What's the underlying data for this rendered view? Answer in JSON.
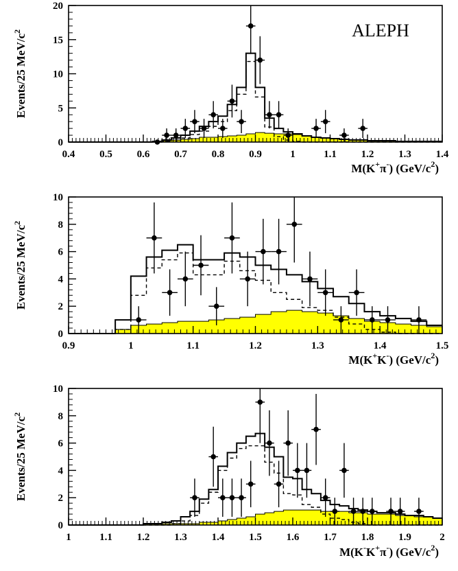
{
  "chart_data": [
    {
      "type": "histogram",
      "label": "ALEPH",
      "xlabel": {
        "main": "M(K",
        "sup1": "+",
        "mid1": "π",
        "sup2": "-",
        "end": ") (GeV/c",
        "sup3": "2",
        "close": ")"
      },
      "ylabel": "Events/25 MeV/c",
      "ylabel_sup": "2",
      "xlim": [
        0.4,
        1.4
      ],
      "ylim": [
        0,
        20
      ],
      "x_ticks": [
        "0.4",
        "0.5",
        "0.6",
        "0.7",
        "0.8",
        "0.9",
        "1",
        "1.1",
        "1.2",
        "1.3",
        "1.4"
      ],
      "y_ticks": [
        "0",
        "5",
        "10",
        "15",
        "20"
      ],
      "bin_width": 0.025,
      "data_points": [
        {
          "x": 0.6375,
          "y": 0,
          "err": 0
        },
        {
          "x": 0.6625,
          "y": 1,
          "err": 1
        },
        {
          "x": 0.6875,
          "y": 1,
          "err": 1
        },
        {
          "x": 0.7125,
          "y": 2,
          "err": 1.4
        },
        {
          "x": 0.7375,
          "y": 3,
          "err": 1.7
        },
        {
          "x": 0.7625,
          "y": 2,
          "err": 1.4
        },
        {
          "x": 0.7875,
          "y": 4,
          "err": 2
        },
        {
          "x": 0.8125,
          "y": 2,
          "err": 1.4
        },
        {
          "x": 0.8375,
          "y": 6,
          "err": 2.4
        },
        {
          "x": 0.8625,
          "y": 3,
          "err": 1.7
        },
        {
          "x": 0.8875,
          "y": 17,
          "err": 4.1
        },
        {
          "x": 0.9125,
          "y": 12,
          "err": 3.5
        },
        {
          "x": 0.9375,
          "y": 4,
          "err": 2
        },
        {
          "x": 0.9625,
          "y": 4,
          "err": 2
        },
        {
          "x": 0.9875,
          "y": 1,
          "err": 1
        },
        {
          "x": 1.0625,
          "y": 2,
          "err": 1.4
        },
        {
          "x": 1.0875,
          "y": 3,
          "err": 1.7
        },
        {
          "x": 1.1375,
          "y": 1,
          "err": 1
        },
        {
          "x": 1.1875,
          "y": 2,
          "err": 1.4
        }
      ],
      "total_hist": [
        0,
        0,
        0,
        0,
        0,
        0,
        0,
        0,
        0,
        0.1,
        0.3,
        0.6,
        1.0,
        1.6,
        2.3,
        3.0,
        3.8,
        5.5,
        8.0,
        13.0,
        8.0,
        3.5,
        2.0,
        1.5,
        1.2,
        0.9,
        0.7,
        0.6,
        0.5,
        0.4,
        0.3,
        0.3,
        0.2,
        0.2,
        0.2,
        0.1,
        0.1,
        0.1,
        0.1,
        0.1
      ],
      "signal_hist": [
        0,
        0,
        0,
        0,
        0,
        0,
        0,
        0,
        0,
        0,
        0.1,
        0.3,
        0.6,
        1.1,
        1.6,
        2.3,
        3.0,
        4.6,
        7.0,
        11.8,
        6.6,
        2.2,
        0.8,
        0.3,
        0.1,
        0,
        0,
        0,
        0,
        0,
        0,
        0,
        0,
        0,
        0,
        0,
        0,
        0,
        0,
        0
      ],
      "background_hist": [
        0,
        0,
        0,
        0,
        0,
        0,
        0,
        0,
        0,
        0.1,
        0.2,
        0.3,
        0.4,
        0.5,
        0.7,
        0.7,
        0.8,
        0.9,
        1.0,
        1.2,
        1.4,
        1.3,
        1.2,
        1.2,
        1.1,
        0.9,
        0.7,
        0.6,
        0.5,
        0.4,
        0.3,
        0.3,
        0.2,
        0.2,
        0.2,
        0.1,
        0.1,
        0.1,
        0.1,
        0.1
      ],
      "fill_color": "#ffff00"
    },
    {
      "type": "histogram",
      "xlabel": {
        "main": "M(K",
        "sup1": "+",
        "mid1": "K",
        "sup2": "-",
        "end": ") (GeV/c",
        "sup3": "2",
        "close": ")"
      },
      "ylabel": "Events/25 MeV/c",
      "ylabel_sup": "2",
      "xlim": [
        0.9,
        1.5
      ],
      "ylim": [
        0,
        10
      ],
      "x_ticks": [
        "0.9",
        "1",
        "1.1",
        "1.2",
        "1.3",
        "1.4",
        "1.5"
      ],
      "y_ticks": [
        "0",
        "2",
        "4",
        "6",
        "8",
        "10"
      ],
      "bin_width": 0.025,
      "data_points": [
        {
          "x": 1.0125,
          "y": 1,
          "err": 1
        },
        {
          "x": 1.0375,
          "y": 7,
          "err": 2.6
        },
        {
          "x": 1.0625,
          "y": 3,
          "err": 1.7
        },
        {
          "x": 1.0875,
          "y": 4,
          "err": 2
        },
        {
          "x": 1.1125,
          "y": 5,
          "err": 2.2
        },
        {
          "x": 1.1375,
          "y": 2,
          "err": 1.4
        },
        {
          "x": 1.1625,
          "y": 7,
          "err": 2.6
        },
        {
          "x": 1.1875,
          "y": 4,
          "err": 2
        },
        {
          "x": 1.2125,
          "y": 6,
          "err": 2.4
        },
        {
          "x": 1.2375,
          "y": 6,
          "err": 2.4
        },
        {
          "x": 1.2625,
          "y": 8,
          "err": 2.8
        },
        {
          "x": 1.2875,
          "y": 4,
          "err": 2
        },
        {
          "x": 1.3125,
          "y": 3,
          "err": 1.7
        },
        {
          "x": 1.3375,
          "y": 1,
          "err": 1
        },
        {
          "x": 1.3625,
          "y": 3,
          "err": 1.7
        },
        {
          "x": 1.3875,
          "y": 1,
          "err": 1
        },
        {
          "x": 1.4125,
          "y": 1,
          "err": 1
        },
        {
          "x": 1.4625,
          "y": 1,
          "err": 1
        }
      ],
      "total_hist": [
        0,
        0,
        0,
        1.0,
        4.2,
        5.6,
        6.1,
        6.5,
        5.4,
        5.4,
        5.9,
        5.6,
        5.0,
        4.7,
        4.3,
        3.8,
        3.3,
        2.7,
        2.2,
        1.6,
        1.3,
        1.1,
        0.9,
        0.6
      ],
      "signal_hist": [
        0,
        0,
        0,
        0.3,
        2.8,
        4.8,
        5.4,
        5.9,
        4.3,
        4.3,
        5.3,
        4.6,
        3.9,
        3.0,
        2.5,
        1.9,
        1.7,
        1.2,
        0.7,
        0.3,
        0.1,
        0,
        0,
        0
      ],
      "background_hist": [
        0,
        0,
        0,
        0.3,
        0.6,
        0.7,
        0.8,
        0.9,
        0.9,
        1.0,
        1.1,
        1.2,
        1.4,
        1.6,
        1.7,
        1.6,
        1.5,
        1.3,
        1.1,
        0.9,
        0.8,
        0.7,
        0.6,
        0.5
      ],
      "fill_color": "#ffff00"
    },
    {
      "type": "histogram",
      "xlabel": {
        "main": "M(K",
        "sup1": "-",
        "mid0": "K",
        "sup0": "+",
        "mid1": "π",
        "sup2": "-",
        "end": ") (GeV/c",
        "sup3": "2",
        "close": ")"
      },
      "ylabel": "Events/25 MeV/c",
      "ylabel_sup": "2",
      "xlim": [
        1.0,
        2.0
      ],
      "ylim": [
        0,
        10
      ],
      "x_ticks": [
        "1",
        "1.1",
        "1.2",
        "1.3",
        "1.4",
        "1.5",
        "1.6",
        "1.7",
        "1.8",
        "1.9",
        "2"
      ],
      "y_ticks": [
        "0",
        "2",
        "4",
        "6",
        "8",
        "10"
      ],
      "bin_width": 0.025,
      "data_points": [
        {
          "x": 1.3375,
          "y": 2,
          "err": 1.4
        },
        {
          "x": 1.3875,
          "y": 5,
          "err": 2.2
        },
        {
          "x": 1.4125,
          "y": 2,
          "err": 1.4
        },
        {
          "x": 1.4375,
          "y": 2,
          "err": 1.4
        },
        {
          "x": 1.4625,
          "y": 2,
          "err": 1.4
        },
        {
          "x": 1.4875,
          "y": 3,
          "err": 1.7
        },
        {
          "x": 1.5125,
          "y": 9,
          "err": 3
        },
        {
          "x": 1.5375,
          "y": 6,
          "err": 2.4
        },
        {
          "x": 1.5625,
          "y": 3,
          "err": 1.7
        },
        {
          "x": 1.5875,
          "y": 6,
          "err": 2.4
        },
        {
          "x": 1.6125,
          "y": 4,
          "err": 2
        },
        {
          "x": 1.6375,
          "y": 4,
          "err": 2
        },
        {
          "x": 1.6625,
          "y": 7,
          "err": 2.6
        },
        {
          "x": 1.6875,
          "y": 2,
          "err": 1.4
        },
        {
          "x": 1.7125,
          "y": 1,
          "err": 1
        },
        {
          "x": 1.7375,
          "y": 4,
          "err": 2
        },
        {
          "x": 1.7625,
          "y": 1,
          "err": 1
        },
        {
          "x": 1.7875,
          "y": 1,
          "err": 1
        },
        {
          "x": 1.8125,
          "y": 1,
          "err": 1
        },
        {
          "x": 1.8625,
          "y": 1,
          "err": 1
        },
        {
          "x": 1.8875,
          "y": 1,
          "err": 1
        },
        {
          "x": 1.9375,
          "y": 1,
          "err": 1
        }
      ],
      "total_hist": [
        0,
        0,
        0,
        0,
        0,
        0,
        0,
        0,
        0.1,
        0.1,
        0.2,
        0.3,
        0.6,
        1.0,
        1.9,
        2.6,
        4.3,
        5.3,
        6.0,
        6.5,
        6.7,
        5.7,
        5.0,
        3.5,
        3.4,
        2.6,
        2.3,
        1.8,
        1.5,
        1.4,
        1.2,
        1.1,
        1.0,
        0.9,
        0.9,
        0.8,
        0.7,
        0.7,
        0.6,
        0.5
      ],
      "signal_hist": [
        0,
        0,
        0,
        0,
        0,
        0,
        0,
        0,
        0,
        0,
        0,
        0.1,
        0.3,
        0.7,
        1.6,
        2.4,
        4.0,
        4.9,
        5.6,
        5.8,
        5.8,
        4.6,
        3.8,
        2.3,
        2.2,
        1.5,
        1.3,
        0.8,
        0.5,
        0.4,
        0.2,
        0.1,
        0,
        0,
        0,
        0,
        0,
        0,
        0,
        0
      ],
      "background_hist": [
        0,
        0,
        0,
        0,
        0,
        0,
        0,
        0,
        0.1,
        0.1,
        0.1,
        0.1,
        0.1,
        0.1,
        0.2,
        0.2,
        0.3,
        0.4,
        0.5,
        0.6,
        0.8,
        0.9,
        1.0,
        1.1,
        1.1,
        1.1,
        1.1,
        1.0,
        1.0,
        1.0,
        0.9,
        0.9,
        0.8,
        0.8,
        0.8,
        0.7,
        0.7,
        0.6,
        0.6,
        0.5
      ],
      "fill_color": "#ffff00"
    }
  ]
}
